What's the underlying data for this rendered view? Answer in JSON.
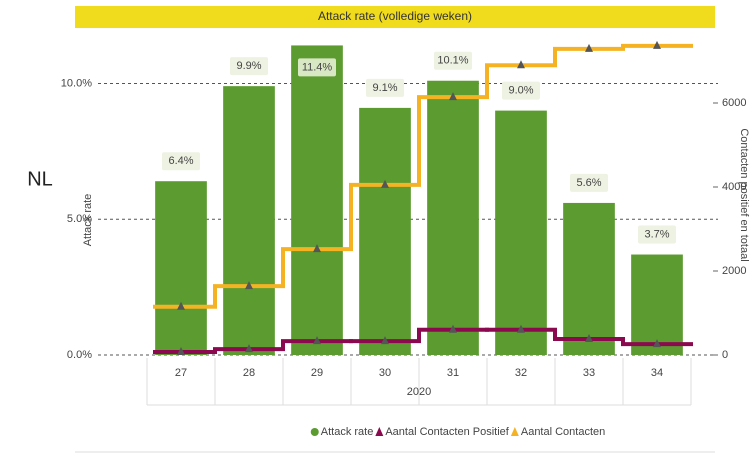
{
  "chart_data": {
    "type": "combo",
    "title": "Attack rate (volledige weken)",
    "page_label": "NL",
    "categories": [
      "27",
      "28",
      "29",
      "30",
      "31",
      "32",
      "33",
      "34"
    ],
    "x_label": "2020",
    "y_label": "Attack rate",
    "y2_label": "Contacten positief en totaal",
    "ylim": [
      0,
      11.6
    ],
    "yticks": [
      {
        "value": 0,
        "label": "0.0%"
      },
      {
        "value": 5,
        "label": "5.0%"
      },
      {
        "value": 10,
        "label": "10.0%"
      }
    ],
    "y2lim": [
      0,
      7500
    ],
    "y2ticks": [
      0,
      2000,
      4000,
      6000
    ],
    "grid": true,
    "legend": "bottom",
    "series": [
      {
        "name": "Attack rate",
        "type": "bar",
        "color": "#5b9b30",
        "values": [
          6.4,
          9.9,
          11.4,
          9.1,
          10.1,
          9.0,
          5.6,
          3.7
        ],
        "value_labels": [
          "6.4%",
          "9.9%",
          "11.4%",
          "9.1%",
          "10.1%",
          "9.0%",
          "5.6%",
          "3.7%"
        ]
      },
      {
        "name": "Aantal Contacten Positief",
        "type": "step",
        "axis": "y2",
        "color": "#8b0a4f",
        "values": [
          70,
          140,
          330,
          330,
          600,
          600,
          380,
          260
        ]
      },
      {
        "name": "Aantal Contacten",
        "type": "step",
        "axis": "y2",
        "color": "#f5b324",
        "values": [
          1150,
          1640,
          2520,
          4050,
          6140,
          6900,
          7290,
          7360
        ]
      }
    ]
  }
}
